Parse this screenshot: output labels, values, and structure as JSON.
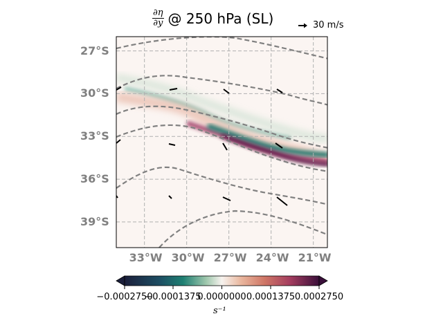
{
  "title": {
    "numerator": "∂η",
    "denominator": "∂y",
    "text": "@ 250 hPa (SL)"
  },
  "quiver_key": {
    "label": "30 m/s",
    "magnitude": 30,
    "unit": "m/s"
  },
  "map": {
    "lon_range": [
      -35,
      -20
    ],
    "lat_range": [
      -40.8,
      -26
    ],
    "lat_ticks": [
      {
        "value": -27,
        "label": "27°S"
      },
      {
        "value": -30,
        "label": "30°S"
      },
      {
        "value": -33,
        "label": "33°S"
      },
      {
        "value": -36,
        "label": "36°S"
      },
      {
        "value": -39,
        "label": "39°S"
      }
    ],
    "lon_ticks": [
      {
        "value": -33,
        "label": "33°W"
      },
      {
        "value": -30,
        "label": "30°W"
      },
      {
        "value": -27,
        "label": "27°W"
      },
      {
        "value": -24,
        "label": "24°W"
      },
      {
        "value": -21,
        "label": "21°W"
      }
    ],
    "gridlines": true,
    "colors": {
      "positive": "#6b1a4e",
      "negative": "#0e6b66",
      "contour": "#808080",
      "grid": "#b0b0b0"
    }
  },
  "colorbar": {
    "ticks": [
      {
        "value": -0.000275,
        "label": "−0.0002750"
      },
      {
        "value": -0.000138,
        "label": "−0.0001375"
      },
      {
        "value": 0.0,
        "label": "0.0000000"
      },
      {
        "value": 0.000138,
        "label": "0.0001375"
      },
      {
        "value": 0.000275,
        "label": "0.0002750"
      }
    ],
    "unit_label": "s⁻¹",
    "extend": "both"
  }
}
